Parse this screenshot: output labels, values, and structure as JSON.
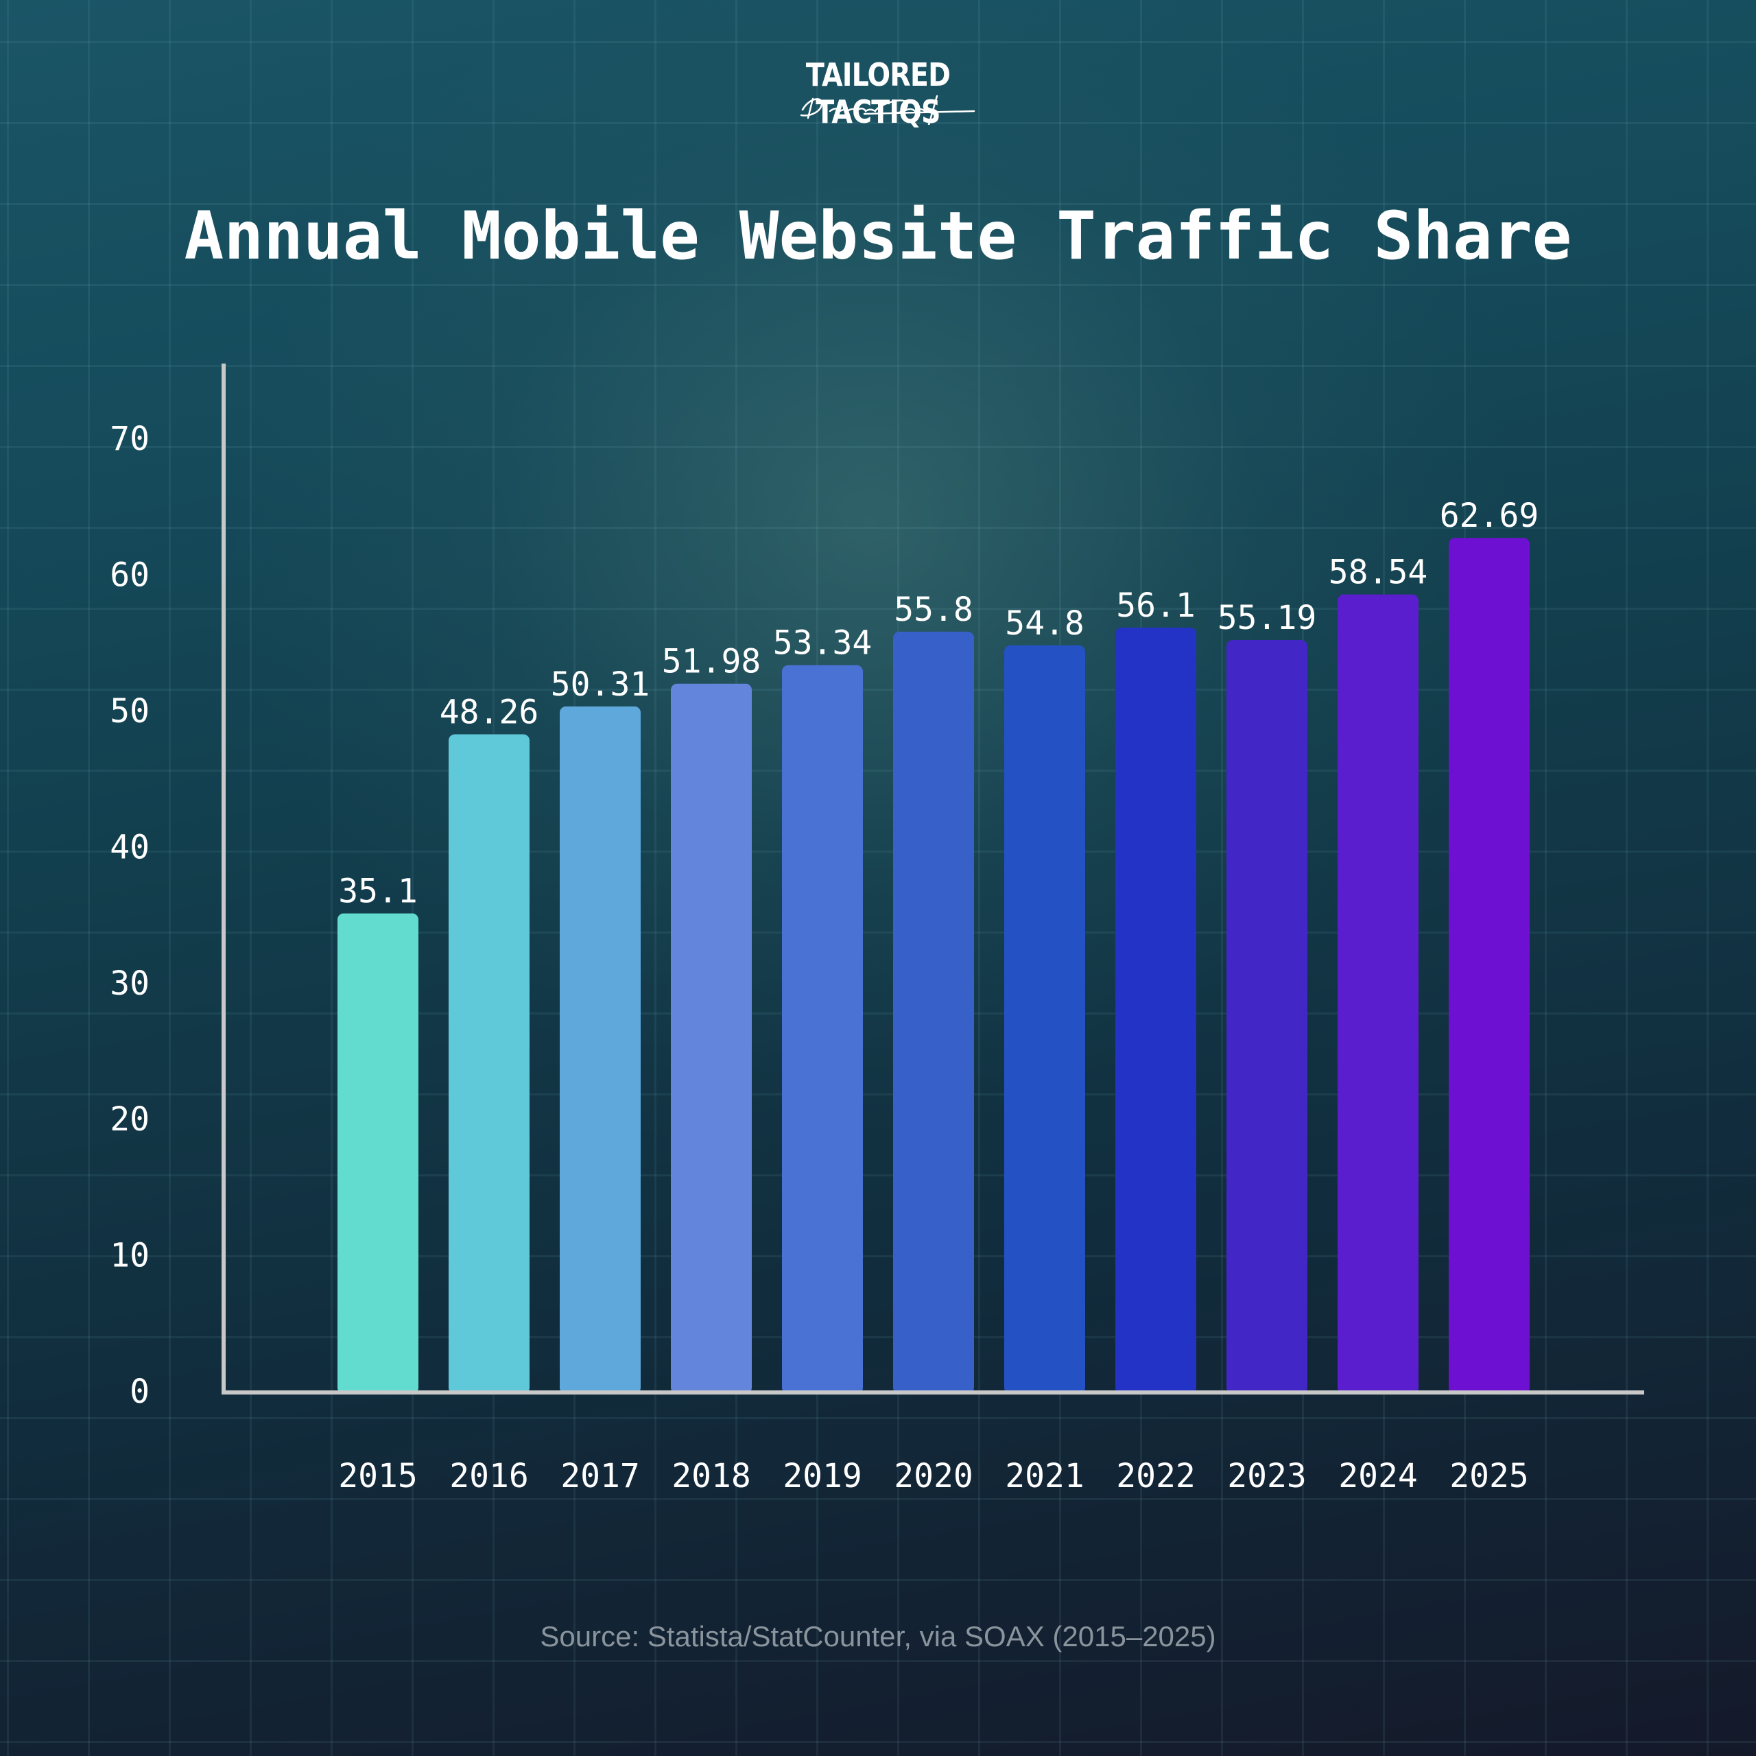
{
  "brand": {
    "name": "TAILORED TACTIQS",
    "signature": "Dennis Quast"
  },
  "chart_data": {
    "type": "bar",
    "title": "Annual Mobile Website Traffic Share",
    "xlabel": "",
    "ylabel": "",
    "categories": [
      "2015",
      "2016",
      "2017",
      "2018",
      "2019",
      "2020",
      "2021",
      "2022",
      "2023",
      "2024",
      "2025"
    ],
    "values": [
      35.1,
      48.26,
      50.31,
      51.98,
      53.34,
      55.8,
      54.8,
      56.1,
      55.19,
      58.54,
      62.69
    ],
    "value_labels": [
      "35.1",
      "48.26",
      "50.31",
      "51.98",
      "53.34",
      "55.8",
      "54.8",
      "56.1",
      "55.19",
      "58.54",
      "62.69"
    ],
    "bar_colors": [
      "#62dccf",
      "#5fc8d9",
      "#5fa8db",
      "#6386dc",
      "#4a72d4",
      "#3760c8",
      "#2452c4",
      "#2233c6",
      "#4326c6",
      "#5a1ece",
      "#6e10d2"
    ],
    "yticks": [
      0,
      10,
      20,
      30,
      40,
      50,
      60,
      70
    ],
    "ylim": [
      0,
      75
    ],
    "grid": true,
    "legend": "none",
    "source": "Source: Statista/StatCounter, via SOAX (2015–2025)"
  }
}
